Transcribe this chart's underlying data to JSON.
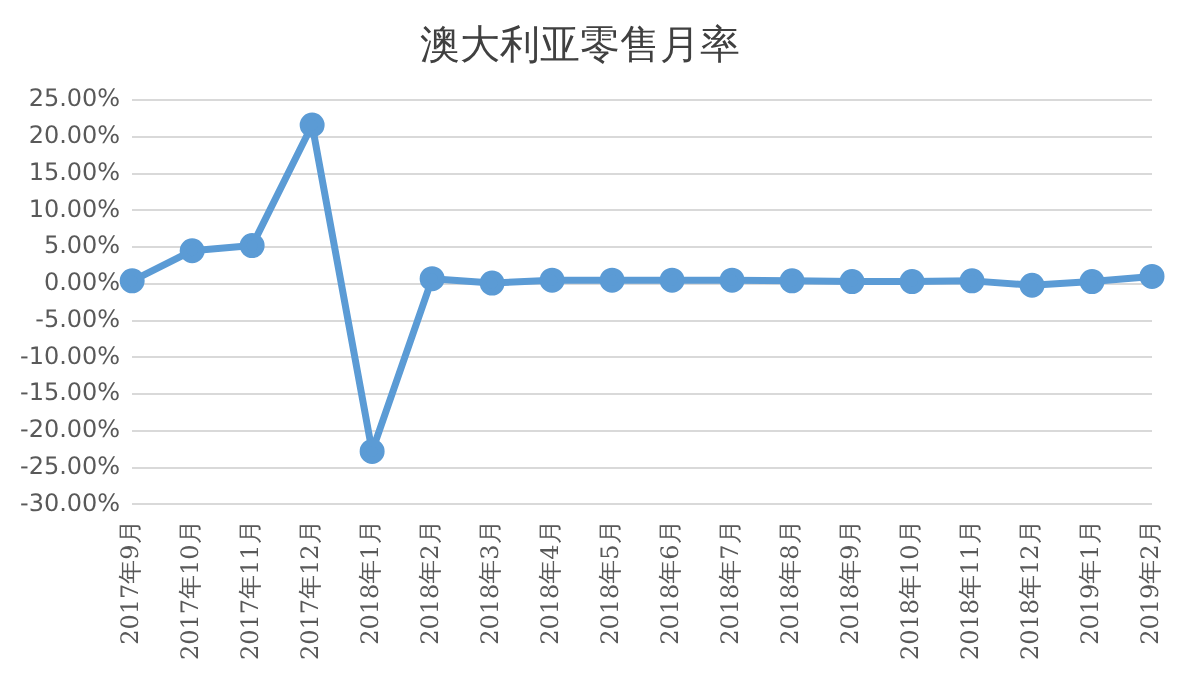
{
  "chart_data": {
    "type": "line",
    "title": "澳大利亚零售月率",
    "categories": [
      "2017年9月",
      "2017年10月",
      "2017年11月",
      "2017年12月",
      "2018年1月",
      "2018年2月",
      "2018年3月",
      "2018年4月",
      "2018年5月",
      "2018年6月",
      "2018年7月",
      "2018年8月",
      "2018年9月",
      "2018年10月",
      "2018年11月",
      "2018年12月",
      "2019年1月",
      "2019年2月"
    ],
    "series": [
      {
        "color": "#5b9bd5",
        "values": [
          0.4,
          4.5,
          5.2,
          21.6,
          -22.8,
          0.7,
          0.1,
          0.5,
          0.5,
          0.5,
          0.5,
          0.4,
          0.3,
          0.3,
          0.4,
          -0.2,
          0.3,
          1.0
        ]
      }
    ],
    "ylim": [
      -30,
      25
    ],
    "yticks": [
      {
        "value": -30,
        "label": "-30.00%"
      },
      {
        "value": -25,
        "label": "-25.00%"
      },
      {
        "value": -20,
        "label": "-20.00%"
      },
      {
        "value": -15,
        "label": "-15.00%"
      },
      {
        "value": -10,
        "label": "-10.00%"
      },
      {
        "value": -5,
        "label": "-5.00%"
      },
      {
        "value": 0,
        "label": "0.00%"
      },
      {
        "value": 5,
        "label": "5.00%"
      },
      {
        "value": 10,
        "label": "10.00%"
      },
      {
        "value": 15,
        "label": "15.00%"
      },
      {
        "value": 20,
        "label": "20.00%"
      },
      {
        "value": 25,
        "label": "25.00%"
      }
    ],
    "grid": "y",
    "legend": false,
    "marker": "circle",
    "line_style": "solid"
  }
}
